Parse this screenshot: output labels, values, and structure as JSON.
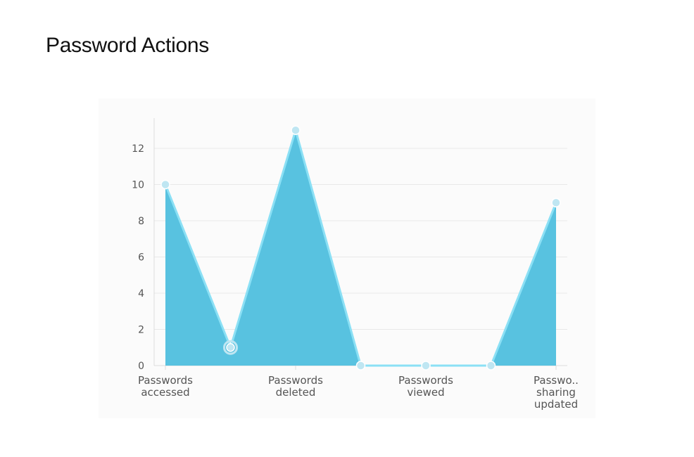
{
  "page": {
    "title": "Password Actions"
  },
  "chart_data": {
    "type": "area",
    "title": "",
    "xlabel": "",
    "ylabel": "",
    "ylim": [
      0,
      13.5
    ],
    "yticks": [
      0,
      2,
      4,
      6,
      8,
      10,
      12
    ],
    "grid": true,
    "legend": "none",
    "points": [
      {
        "value": 10,
        "label_lines": [
          "Passwords",
          "accessed"
        ]
      },
      {
        "value": 1,
        "label_lines": []
      },
      {
        "value": 13,
        "label_lines": [
          "Passwords",
          "deleted"
        ]
      },
      {
        "value": 0,
        "label_lines": []
      },
      {
        "value": 0,
        "label_lines": [
          "Passwords",
          "viewed"
        ]
      },
      {
        "value": 0,
        "label_lines": []
      },
      {
        "value": 9,
        "label_lines": [
          "Passwo..",
          "sharing",
          "updated"
        ]
      }
    ],
    "colors": {
      "fill": "#58c2e0",
      "line": "#8be0f5",
      "marker": "#bfe6f2",
      "grid": "#e8e8e8",
      "axis": "#dddddd"
    }
  }
}
